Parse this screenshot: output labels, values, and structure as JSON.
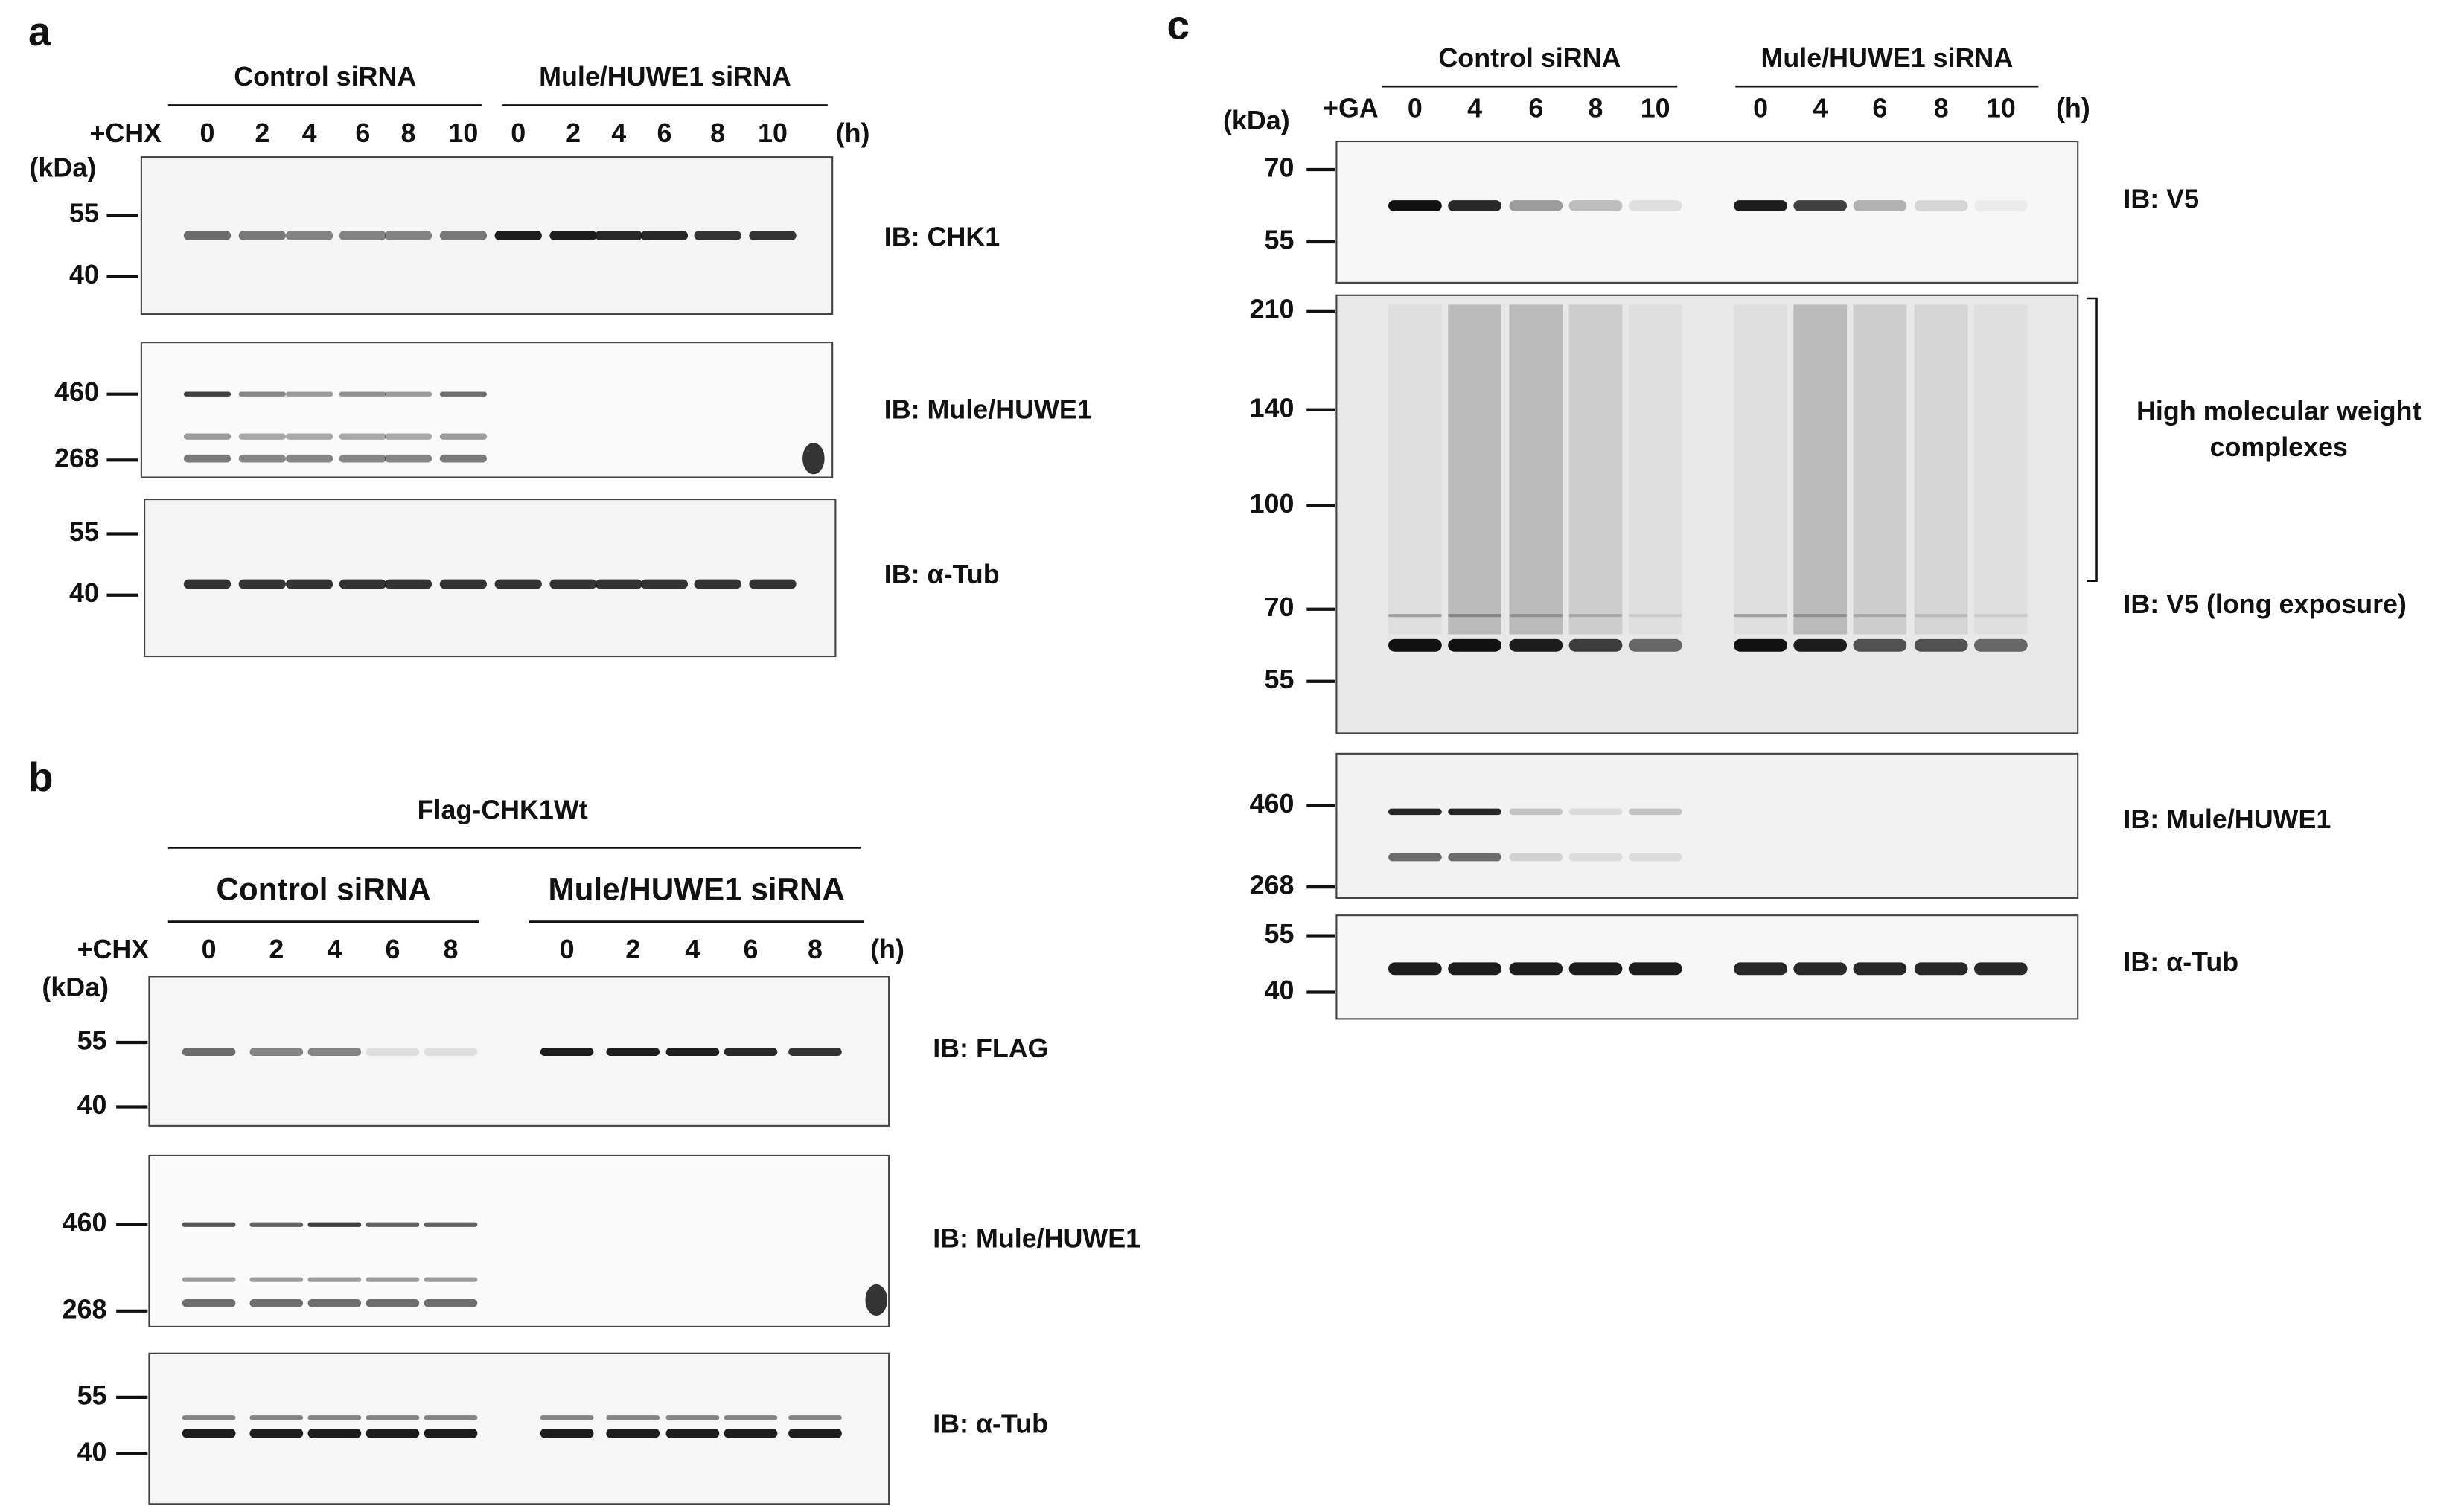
{
  "panels": [
    {
      "label": "a",
      "treatment": "+CHX",
      "unit": "(h)",
      "kda": "(kDa)",
      "groups": [
        {
          "name": "Control siRNA",
          "lanes": [
            0,
            2,
            4,
            6,
            8,
            10
          ]
        },
        {
          "name": "Mule/HUWE1 siRNA",
          "lanes": [
            0,
            2,
            4,
            6,
            8,
            10
          ]
        }
      ],
      "blots": [
        {
          "label": "IB: CHK1",
          "markers": [
            55,
            40
          ]
        },
        {
          "label": "IB: Mule/HUWE1",
          "markers": [
            460,
            268
          ]
        },
        {
          "label": "IB: α-Tub",
          "markers": [
            55,
            40
          ]
        }
      ]
    },
    {
      "label": "b",
      "construct": "Flag-CHK1Wt",
      "treatment": "+CHX",
      "unit": "(h)",
      "kda": "(kDa)",
      "groups": [
        {
          "name": "Control siRNA",
          "lanes": [
            0,
            2,
            4,
            6,
            8
          ]
        },
        {
          "name": "Mule/HUWE1 siRNA",
          "lanes": [
            0,
            2,
            4,
            6,
            8
          ]
        }
      ],
      "blots": [
        {
          "label": "IB: FLAG",
          "markers": [
            55,
            40
          ]
        },
        {
          "label": "IB: Mule/HUWE1",
          "markers": [
            460,
            268
          ]
        },
        {
          "label": "IB: α-Tub",
          "markers": [
            55,
            40
          ]
        }
      ]
    },
    {
      "label": "c",
      "treatment": "+GA",
      "unit": "(h)",
      "kda": "(kDa)",
      "groups": [
        {
          "name": "Control siRNA",
          "lanes": [
            0,
            4,
            6,
            8,
            10
          ]
        },
        {
          "name": "Mule/HUWE1 siRNA",
          "lanes": [
            0,
            4,
            6,
            8,
            10
          ]
        }
      ],
      "blots": [
        {
          "label": "IB: V5",
          "markers": [
            70,
            55
          ]
        },
        {
          "label": "IB: V5 (long exposure)",
          "markers": [
            210,
            140,
            100,
            70,
            55
          ],
          "annotation": [
            "High molecular weight",
            "complexes"
          ]
        },
        {
          "label": "IB: Mule/HUWE1",
          "markers": [
            460,
            268
          ]
        },
        {
          "label": "IB: α-Tub",
          "markers": [
            55,
            40
          ]
        }
      ]
    }
  ]
}
